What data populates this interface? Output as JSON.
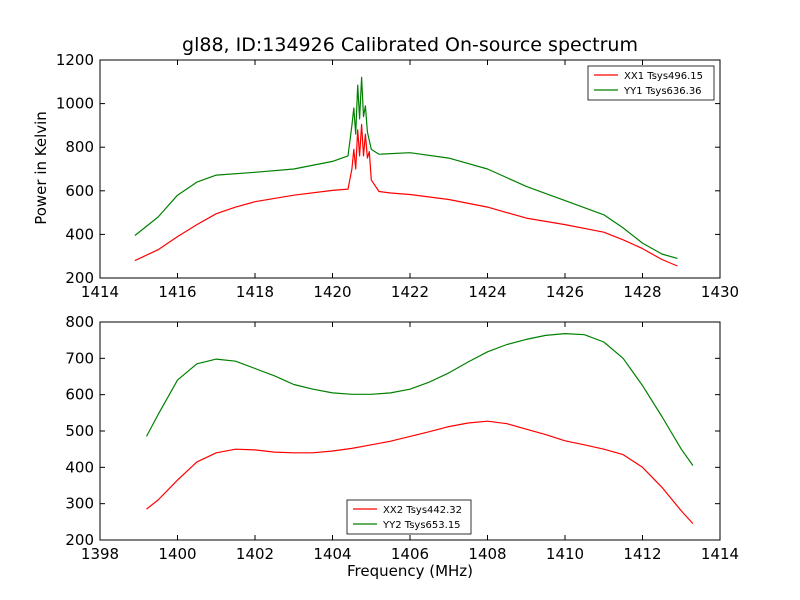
{
  "figure": {
    "title": "gl88, ID:134926 Calibrated On-source spectrum",
    "xlabel": "Frequency (MHz)"
  },
  "chart_data": [
    {
      "type": "line",
      "ylabel": "Power in Kelvin",
      "xlabel": "",
      "xlim": [
        1414,
        1430
      ],
      "ylim": [
        200,
        1200
      ],
      "xticks": [
        1414,
        1416,
        1418,
        1420,
        1422,
        1424,
        1426,
        1428,
        1430
      ],
      "yticks": [
        200,
        400,
        600,
        800,
        1000,
        1200
      ],
      "legend": "top-right",
      "series": [
        {
          "name": "XX1 Tsys496.15",
          "color": "#ff0000",
          "points": [
            [
              1414.9,
              280
            ],
            [
              1415.5,
              330
            ],
            [
              1416,
              390
            ],
            [
              1416.5,
              445
            ],
            [
              1417,
              495
            ],
            [
              1417.5,
              525
            ],
            [
              1418,
              550
            ],
            [
              1419,
              580
            ],
            [
              1420,
              602
            ],
            [
              1420.4,
              608
            ],
            [
              1420.5,
              700
            ],
            [
              1420.55,
              790
            ],
            [
              1420.6,
              700
            ],
            [
              1420.65,
              880
            ],
            [
              1420.7,
              760
            ],
            [
              1420.75,
              905
            ],
            [
              1420.8,
              760
            ],
            [
              1420.85,
              860
            ],
            [
              1420.9,
              750
            ],
            [
              1420.95,
              780
            ],
            [
              1421,
              650
            ],
            [
              1421.2,
              597
            ],
            [
              1421.5,
              590
            ],
            [
              1422,
              583
            ],
            [
              1423,
              560
            ],
            [
              1424,
              525
            ],
            [
              1425,
              475
            ],
            [
              1426,
              445
            ],
            [
              1427,
              410
            ],
            [
              1427.5,
              375
            ],
            [
              1428,
              335
            ],
            [
              1428.5,
              285
            ],
            [
              1428.9,
              255
            ]
          ]
        },
        {
          "name": "YY1 Tsys636.36",
          "color": "#008000",
          "points": [
            [
              1414.9,
              395
            ],
            [
              1415.5,
              480
            ],
            [
              1416,
              580
            ],
            [
              1416.5,
              640
            ],
            [
              1417,
              672
            ],
            [
              1418,
              685
            ],
            [
              1419,
              700
            ],
            [
              1420,
              735
            ],
            [
              1420.4,
              760
            ],
            [
              1420.5,
              900
            ],
            [
              1420.55,
              980
            ],
            [
              1420.6,
              860
            ],
            [
              1420.65,
              1085
            ],
            [
              1420.7,
              930
            ],
            [
              1420.75,
              1120
            ],
            [
              1420.8,
              940
            ],
            [
              1420.85,
              990
            ],
            [
              1420.9,
              870
            ],
            [
              1421,
              790
            ],
            [
              1421.2,
              768
            ],
            [
              1422,
              775
            ],
            [
              1423,
              750
            ],
            [
              1424,
              700
            ],
            [
              1425,
              620
            ],
            [
              1426,
              555
            ],
            [
              1427,
              490
            ],
            [
              1427.5,
              430
            ],
            [
              1428,
              360
            ],
            [
              1428.5,
              310
            ],
            [
              1428.9,
              290
            ]
          ]
        }
      ]
    },
    {
      "type": "line",
      "ylabel": "",
      "xlabel": "Frequency (MHz)",
      "xlim": [
        1398,
        1414
      ],
      "ylim": [
        200,
        800
      ],
      "xticks": [
        1398,
        1400,
        1402,
        1404,
        1406,
        1408,
        1410,
        1412,
        1414
      ],
      "yticks": [
        200,
        300,
        400,
        500,
        600,
        700,
        800
      ],
      "legend": "bottom-center",
      "series": [
        {
          "name": "XX2 Tsys442.32",
          "color": "#ff0000",
          "points": [
            [
              1399.2,
              285
            ],
            [
              1399.5,
              310
            ],
            [
              1400,
              365
            ],
            [
              1400.5,
              415
            ],
            [
              1401,
              440
            ],
            [
              1401.5,
              450
            ],
            [
              1402,
              448
            ],
            [
              1402.5,
              442
            ],
            [
              1403,
              440
            ],
            [
              1403.5,
              440
            ],
            [
              1404,
              445
            ],
            [
              1404.5,
              452
            ],
            [
              1405,
              462
            ],
            [
              1405.5,
              472
            ],
            [
              1406,
              485
            ],
            [
              1406.5,
              498
            ],
            [
              1407,
              512
            ],
            [
              1407.5,
              522
            ],
            [
              1408,
              527
            ],
            [
              1408.5,
              520
            ],
            [
              1409,
              505
            ],
            [
              1409.5,
              490
            ],
            [
              1410,
              473
            ],
            [
              1410.5,
              462
            ],
            [
              1411,
              450
            ],
            [
              1411.5,
              435
            ],
            [
              1412,
              400
            ],
            [
              1412.5,
              345
            ],
            [
              1413,
              280
            ],
            [
              1413.3,
              245
            ]
          ]
        },
        {
          "name": "YY2 Tsys653.15",
          "color": "#008000",
          "points": [
            [
              1399.2,
              485
            ],
            [
              1399.5,
              545
            ],
            [
              1400,
              640
            ],
            [
              1400.5,
              685
            ],
            [
              1401,
              698
            ],
            [
              1401.5,
              692
            ],
            [
              1402,
              672
            ],
            [
              1402.5,
              652
            ],
            [
              1403,
              628
            ],
            [
              1403.5,
              615
            ],
            [
              1404,
              605
            ],
            [
              1404.5,
              601
            ],
            [
              1405,
              601
            ],
            [
              1405.5,
              605
            ],
            [
              1406,
              615
            ],
            [
              1406.5,
              635
            ],
            [
              1407,
              660
            ],
            [
              1407.5,
              690
            ],
            [
              1408,
              718
            ],
            [
              1408.5,
              738
            ],
            [
              1409,
              752
            ],
            [
              1409.5,
              763
            ],
            [
              1410,
              768
            ],
            [
              1410.5,
              765
            ],
            [
              1411,
              745
            ],
            [
              1411.5,
              700
            ],
            [
              1412,
              625
            ],
            [
              1412.5,
              540
            ],
            [
              1413,
              450
            ],
            [
              1413.3,
              405
            ]
          ]
        }
      ]
    }
  ]
}
